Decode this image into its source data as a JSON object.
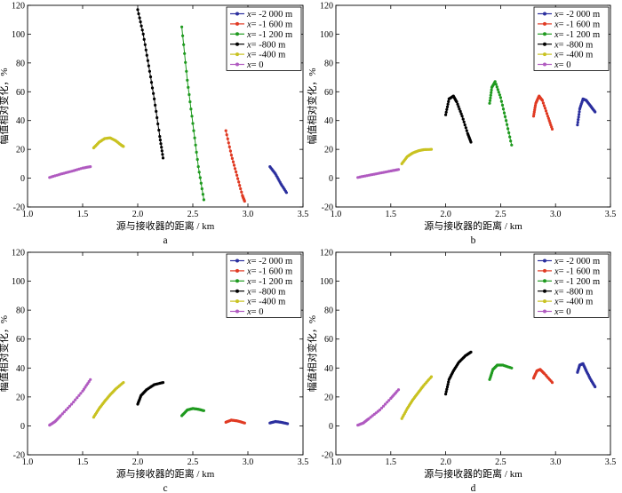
{
  "figure": {
    "panel_labels": [
      "a",
      "b",
      "c",
      "d"
    ]
  },
  "chart_data": [
    {
      "type": "scatter",
      "panel": "a",
      "xlabel": "源与接收器的距离 / km",
      "ylabel": "幅值相对变化，%",
      "xlim": [
        1.0,
        3.5
      ],
      "ylim": [
        -20,
        120
      ],
      "xticks": [
        "1.0",
        "1.5",
        "2.0",
        "2.5",
        "3.0",
        "3.5"
      ],
      "yticks": [
        "-20",
        "0",
        "20",
        "40",
        "60",
        "80",
        "100",
        "120"
      ],
      "legend": {
        "position": "top-right"
      },
      "series": [
        {
          "prefix": "x",
          "label": "= -2 000 m",
          "color": "#2b2f9e",
          "points": [
            [
              3.2,
              8
            ],
            [
              3.25,
              3
            ],
            [
              3.3,
              -4
            ],
            [
              3.35,
              -10
            ]
          ]
        },
        {
          "prefix": "x",
          "label": "= -1 600 m",
          "color": "#e03a23",
          "points": [
            [
              2.8,
              33
            ],
            [
              2.85,
              16
            ],
            [
              2.9,
              2
            ],
            [
              2.95,
              -12
            ],
            [
              2.97,
              -16
            ]
          ]
        },
        {
          "prefix": "x",
          "label": "= -1 200 m",
          "color": "#1f9a1f",
          "points": [
            [
              2.4,
              105
            ],
            [
              2.45,
              68
            ],
            [
              2.5,
              38
            ],
            [
              2.55,
              8
            ],
            [
              2.6,
              -15
            ]
          ]
        },
        {
          "prefix": "x",
          "label": "= -800 m",
          "color": "#000000",
          "points": [
            [
              2.0,
              117
            ],
            [
              2.05,
              100
            ],
            [
              2.1,
              78
            ],
            [
              2.15,
              55
            ],
            [
              2.2,
              29
            ],
            [
              2.23,
              14
            ]
          ]
        },
        {
          "prefix": "x",
          "label": "= -400 m",
          "color": "#c9c221",
          "points": [
            [
              1.6,
              21
            ],
            [
              1.65,
              25
            ],
            [
              1.7,
              27.5
            ],
            [
              1.75,
              28
            ],
            [
              1.8,
              26
            ],
            [
              1.85,
              23
            ],
            [
              1.87,
              22
            ]
          ]
        },
        {
          "prefix": "x",
          "label": "= 0",
          "color": "#b05ac0",
          "points": [
            [
              1.2,
              0.5
            ],
            [
              1.3,
              2.8
            ],
            [
              1.4,
              4.8
            ],
            [
              1.5,
              7
            ],
            [
              1.57,
              8
            ]
          ]
        }
      ]
    },
    {
      "type": "scatter",
      "panel": "b",
      "xlabel": "源与接收器的距离 / km",
      "ylabel": "幅值相对变化，%",
      "xlim": [
        1.0,
        3.5
      ],
      "ylim": [
        -20,
        120
      ],
      "xticks": [
        "1.0",
        "1.5",
        "2.0",
        "2.5",
        "3.0",
        "3.5"
      ],
      "yticks": [
        "-20",
        "0",
        "20",
        "40",
        "60",
        "80",
        "100",
        "120"
      ],
      "legend": {
        "position": "top-right"
      },
      "series": [
        {
          "prefix": "x",
          "label": "= -2 000 m",
          "color": "#2b2f9e",
          "points": [
            [
              3.2,
              37
            ],
            [
              3.22,
              48
            ],
            [
              3.25,
              55
            ],
            [
              3.28,
              54
            ],
            [
              3.32,
              50
            ],
            [
              3.36,
              46
            ]
          ]
        },
        {
          "prefix": "x",
          "label": "= -1 600 m",
          "color": "#e03a23",
          "points": [
            [
              2.8,
              43
            ],
            [
              2.82,
              52
            ],
            [
              2.85,
              57
            ],
            [
              2.88,
              54
            ],
            [
              2.93,
              43
            ],
            [
              2.97,
              34
            ]
          ]
        },
        {
          "prefix": "x",
          "label": "= -1 200 m",
          "color": "#1f9a1f",
          "points": [
            [
              2.4,
              52
            ],
            [
              2.42,
              63
            ],
            [
              2.45,
              67
            ],
            [
              2.5,
              56
            ],
            [
              2.55,
              40
            ],
            [
              2.6,
              23
            ]
          ]
        },
        {
          "prefix": "x",
          "label": "= -800 m",
          "color": "#000000",
          "points": [
            [
              2.0,
              44
            ],
            [
              2.03,
              55
            ],
            [
              2.07,
              57
            ],
            [
              2.1,
              53
            ],
            [
              2.15,
              43
            ],
            [
              2.2,
              31
            ],
            [
              2.23,
              25
            ]
          ]
        },
        {
          "prefix": "x",
          "label": "= -400 m",
          "color": "#c9c221",
          "points": [
            [
              1.6,
              10
            ],
            [
              1.65,
              15
            ],
            [
              1.7,
              17.5
            ],
            [
              1.75,
              19
            ],
            [
              1.8,
              19.8
            ],
            [
              1.87,
              20
            ]
          ]
        },
        {
          "prefix": "x",
          "label": "= 0",
          "color": "#b05ac0",
          "points": [
            [
              1.2,
              0.5
            ],
            [
              1.3,
              2
            ],
            [
              1.4,
              3.5
            ],
            [
              1.5,
              5
            ],
            [
              1.57,
              6
            ]
          ]
        }
      ]
    },
    {
      "type": "scatter",
      "panel": "c",
      "xlabel": "源与接收器的距离 / km",
      "ylabel": "幅值相对变化，%",
      "xlim": [
        1.0,
        3.5
      ],
      "ylim": [
        -20,
        120
      ],
      "xticks": [
        "1.0",
        "1.5",
        "2.0",
        "2.5",
        "3.0",
        "3.5"
      ],
      "yticks": [
        "-20",
        "0",
        "20",
        "40",
        "60",
        "80",
        "100",
        "120"
      ],
      "legend": {
        "position": "top-right"
      },
      "series": [
        {
          "prefix": "x",
          "label": "= -2 000 m",
          "color": "#2b2f9e",
          "points": [
            [
              3.2,
              2
            ],
            [
              3.25,
              3
            ],
            [
              3.3,
              2.5
            ],
            [
              3.36,
              1.5
            ]
          ]
        },
        {
          "prefix": "x",
          "label": "= -1 600 m",
          "color": "#e03a23",
          "points": [
            [
              2.8,
              2.5
            ],
            [
              2.85,
              4
            ],
            [
              2.9,
              3.5
            ],
            [
              2.97,
              2
            ]
          ]
        },
        {
          "prefix": "x",
          "label": "= -1 200 m",
          "color": "#1f9a1f",
          "points": [
            [
              2.4,
              7
            ],
            [
              2.45,
              11
            ],
            [
              2.5,
              12
            ],
            [
              2.55,
              11.5
            ],
            [
              2.6,
              10.5
            ]
          ]
        },
        {
          "prefix": "x",
          "label": "= -800 m",
          "color": "#000000",
          "points": [
            [
              2.0,
              15
            ],
            [
              2.03,
              21
            ],
            [
              2.08,
              25
            ],
            [
              2.15,
              28.5
            ],
            [
              2.23,
              30
            ]
          ]
        },
        {
          "prefix": "x",
          "label": "= -400 m",
          "color": "#c9c221",
          "points": [
            [
              1.6,
              6
            ],
            [
              1.65,
              12
            ],
            [
              1.7,
              17
            ],
            [
              1.75,
              21.5
            ],
            [
              1.8,
              25.5
            ],
            [
              1.87,
              30
            ]
          ]
        },
        {
          "prefix": "x",
          "label": "= 0",
          "color": "#b05ac0",
          "points": [
            [
              1.2,
              0.5
            ],
            [
              1.25,
              3
            ],
            [
              1.3,
              7
            ],
            [
              1.4,
              15
            ],
            [
              1.5,
              24
            ],
            [
              1.57,
              32
            ]
          ]
        }
      ]
    },
    {
      "type": "scatter",
      "panel": "d",
      "xlabel": "源与接收器的距离 / km",
      "ylabel": "幅值相对变化，%",
      "xlim": [
        1.0,
        3.5
      ],
      "ylim": [
        -20,
        120
      ],
      "xticks": [
        "1.0",
        "1.5",
        "2.0",
        "2.5",
        "3.0",
        "3.5"
      ],
      "yticks": [
        "-20",
        "0",
        "20",
        "40",
        "60",
        "80",
        "100",
        "120"
      ],
      "legend": {
        "position": "top-right"
      },
      "series": [
        {
          "prefix": "x",
          "label": "= -2 000 m",
          "color": "#2b2f9e",
          "points": [
            [
              3.2,
              37
            ],
            [
              3.22,
              42
            ],
            [
              3.25,
              43
            ],
            [
              3.28,
              38
            ],
            [
              3.32,
              32
            ],
            [
              3.36,
              27
            ]
          ]
        },
        {
          "prefix": "x",
          "label": "= -1 600 m",
          "color": "#e03a23",
          "points": [
            [
              2.8,
              33
            ],
            [
              2.83,
              38
            ],
            [
              2.86,
              39
            ],
            [
              2.9,
              36
            ],
            [
              2.97,
              30
            ]
          ]
        },
        {
          "prefix": "x",
          "label": "= -1 200 m",
          "color": "#1f9a1f",
          "points": [
            [
              2.4,
              32
            ],
            [
              2.43,
              39
            ],
            [
              2.47,
              42
            ],
            [
              2.52,
              42
            ],
            [
              2.6,
              40
            ]
          ]
        },
        {
          "prefix": "x",
          "label": "= -800 m",
          "color": "#000000",
          "points": [
            [
              2.0,
              22
            ],
            [
              2.03,
              32
            ],
            [
              2.07,
              38
            ],
            [
              2.12,
              44
            ],
            [
              2.18,
              48.5
            ],
            [
              2.23,
              51
            ]
          ]
        },
        {
          "prefix": "x",
          "label": "= -400 m",
          "color": "#c9c221",
          "points": [
            [
              1.6,
              5
            ],
            [
              1.65,
              12
            ],
            [
              1.7,
              18
            ],
            [
              1.75,
              23
            ],
            [
              1.8,
              28
            ],
            [
              1.87,
              34
            ]
          ]
        },
        {
          "prefix": "x",
          "label": "= 0",
          "color": "#b05ac0",
          "points": [
            [
              1.2,
              0.5
            ],
            [
              1.25,
              2
            ],
            [
              1.3,
              5
            ],
            [
              1.4,
              11
            ],
            [
              1.5,
              19
            ],
            [
              1.57,
              25
            ]
          ]
        }
      ]
    }
  ]
}
